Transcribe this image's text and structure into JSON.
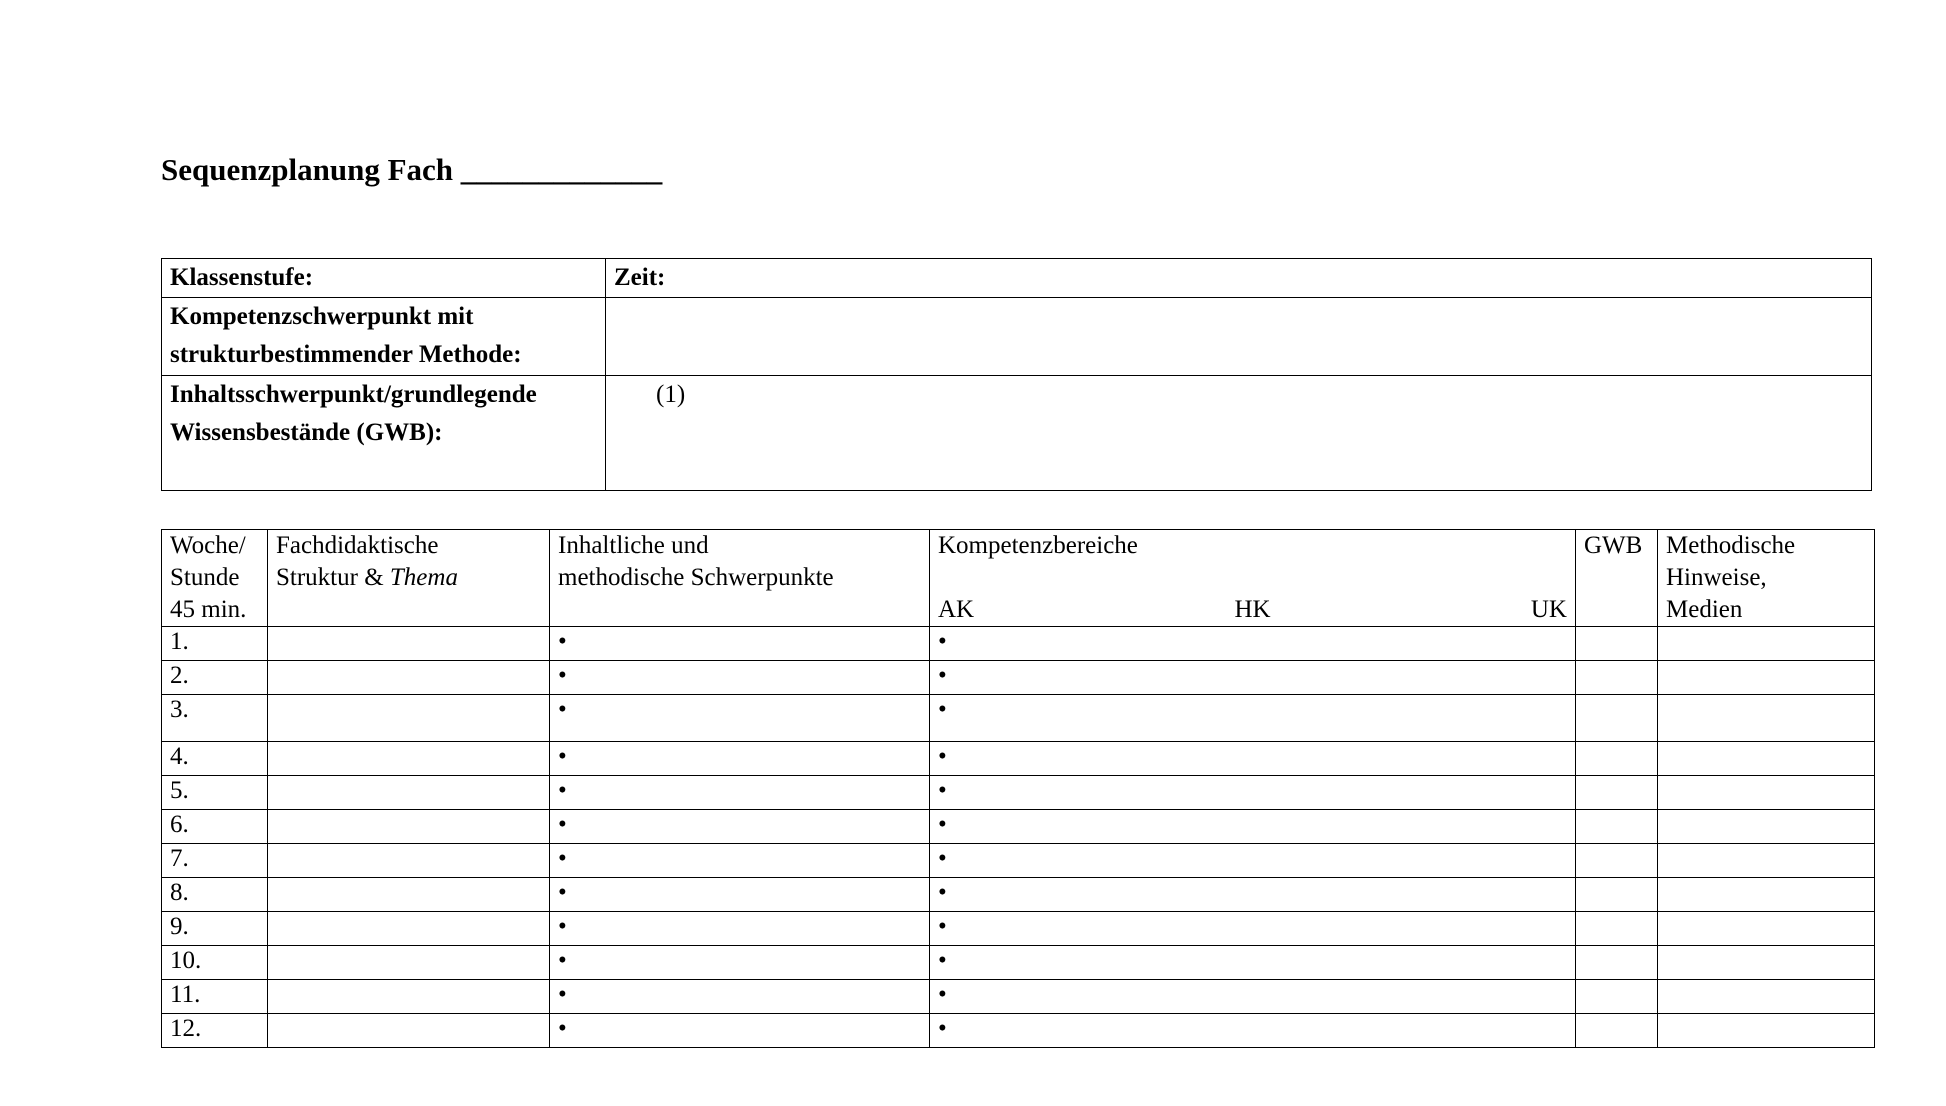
{
  "title": "Sequenzplanung Fach _____________",
  "info_table": {
    "rows": [
      {
        "label": "Klassenstufe:",
        "value": "Zeit:"
      },
      {
        "label": "Kompetenzschwerpunkt mit strukturbestimmender Methode:",
        "value": ""
      },
      {
        "label": "Inhaltsschwerpunkt/grundlegende Wissensbestände (GWB):",
        "value": "(1)"
      }
    ]
  },
  "plan_table": {
    "header": {
      "week": [
        "Woche/",
        "Stunde",
        "45 min."
      ],
      "structure": [
        "Fachdidaktische",
        "Struktur &"
      ],
      "structure_emphasis": "Thema",
      "focus": [
        "Inhaltliche und",
        "methodische Schwerpunkte"
      ],
      "competence": "Kompetenzbereiche",
      "competence_areas": [
        "AK",
        "HK",
        "UK"
      ],
      "gwb": "GWB",
      "methods": [
        "Methodische",
        "Hinweise,",
        "Medien"
      ]
    },
    "bullet": "•",
    "rows": [
      "1.",
      "2.",
      "3.",
      "4.",
      "5.",
      "6.",
      "7.",
      "8.",
      "9.",
      "10.",
      "11.",
      "12."
    ]
  }
}
